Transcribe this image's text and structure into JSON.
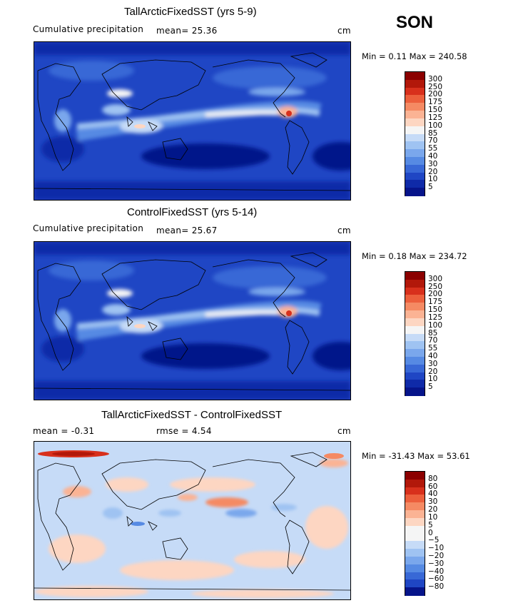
{
  "season": "SON",
  "panels": [
    {
      "title": "TallArcticFixedSST (yrs 5-9)",
      "subtitle_left": "Cumulative precipitation",
      "stat1": "mean=   25.36",
      "stat2": "",
      "units": "cm",
      "minmax": "Min =    0.11  Max = 240.58",
      "colorbar": {
        "labels": [
          "300",
          "250",
          "200",
          "175",
          "150",
          "125",
          "100",
          "85",
          "70",
          "55",
          "40",
          "30",
          "20",
          "10",
          "5"
        ],
        "colors": [
          "#8b0000",
          "#b2180a",
          "#d8301c",
          "#ec5f3c",
          "#f58a63",
          "#fbb394",
          "#fdd6c2",
          "#f5f5f5",
          "#c6dbf7",
          "#9fc3f2",
          "#7aa7ec",
          "#568ae3",
          "#3868d6",
          "#1f46c4",
          "#0f2aa8",
          "#06148a"
        ]
      }
    },
    {
      "title": "ControlFixedSST (yrs 5-14)",
      "subtitle_left": "Cumulative precipitation",
      "stat1": "mean=   25.67",
      "stat2": "",
      "units": "cm",
      "minmax": "Min =    0.18  Max = 234.72",
      "colorbar": {
        "labels": [
          "300",
          "250",
          "200",
          "175",
          "150",
          "125",
          "100",
          "85",
          "70",
          "55",
          "40",
          "30",
          "20",
          "10",
          "5"
        ],
        "colors": [
          "#8b0000",
          "#b2180a",
          "#d8301c",
          "#ec5f3c",
          "#f58a63",
          "#fbb394",
          "#fdd6c2",
          "#f5f5f5",
          "#c6dbf7",
          "#9fc3f2",
          "#7aa7ec",
          "#568ae3",
          "#3868d6",
          "#1f46c4",
          "#0f2aa8",
          "#06148a"
        ]
      }
    },
    {
      "title": "TallArcticFixedSST - ControlFixedSST",
      "subtitle_left": "mean =   -0.31",
      "stat1": "",
      "stat2": "rmse =    4.54",
      "units": "cm",
      "minmax": "Min = -31.43  Max =  53.61",
      "colorbar": {
        "labels": [
          "80",
          "60",
          "40",
          "30",
          "20",
          "10",
          "5",
          "0",
          "−5",
          "−10",
          "−20",
          "−30",
          "−40",
          "−60",
          "−80"
        ],
        "colors": [
          "#8b0000",
          "#b2180a",
          "#d8301c",
          "#ec5f3c",
          "#f58a63",
          "#fbb394",
          "#fdd6c2",
          "#f5f5f5",
          "#f5f5f5",
          "#c6dbf7",
          "#9fc3f2",
          "#7aa7ec",
          "#568ae3",
          "#3868d6",
          "#1f46c4",
          "#06148a"
        ]
      }
    }
  ],
  "chart_data": [
    {
      "type": "heatmap",
      "title": "TallArcticFixedSST (yrs 5-9)",
      "variable": "Cumulative precipitation",
      "units": "cm",
      "mean": 25.36,
      "min": 0.11,
      "max": 240.58,
      "contour_levels": [
        5,
        10,
        20,
        30,
        40,
        55,
        70,
        85,
        100,
        125,
        150,
        175,
        200,
        250,
        300
      ]
    },
    {
      "type": "heatmap",
      "title": "ControlFixedSST (yrs 5-14)",
      "variable": "Cumulative precipitation",
      "units": "cm",
      "mean": 25.67,
      "min": 0.18,
      "max": 234.72,
      "contour_levels": [
        5,
        10,
        20,
        30,
        40,
        55,
        70,
        85,
        100,
        125,
        150,
        175,
        200,
        250,
        300
      ]
    },
    {
      "type": "heatmap",
      "title": "TallArcticFixedSST - ControlFixedSST",
      "units": "cm",
      "mean": -0.31,
      "rmse": 4.54,
      "min": -31.43,
      "max": 53.61,
      "contour_levels": [
        -80,
        -60,
        -40,
        -30,
        -20,
        -10,
        -5,
        0,
        5,
        10,
        20,
        30,
        40,
        60,
        80
      ]
    }
  ]
}
